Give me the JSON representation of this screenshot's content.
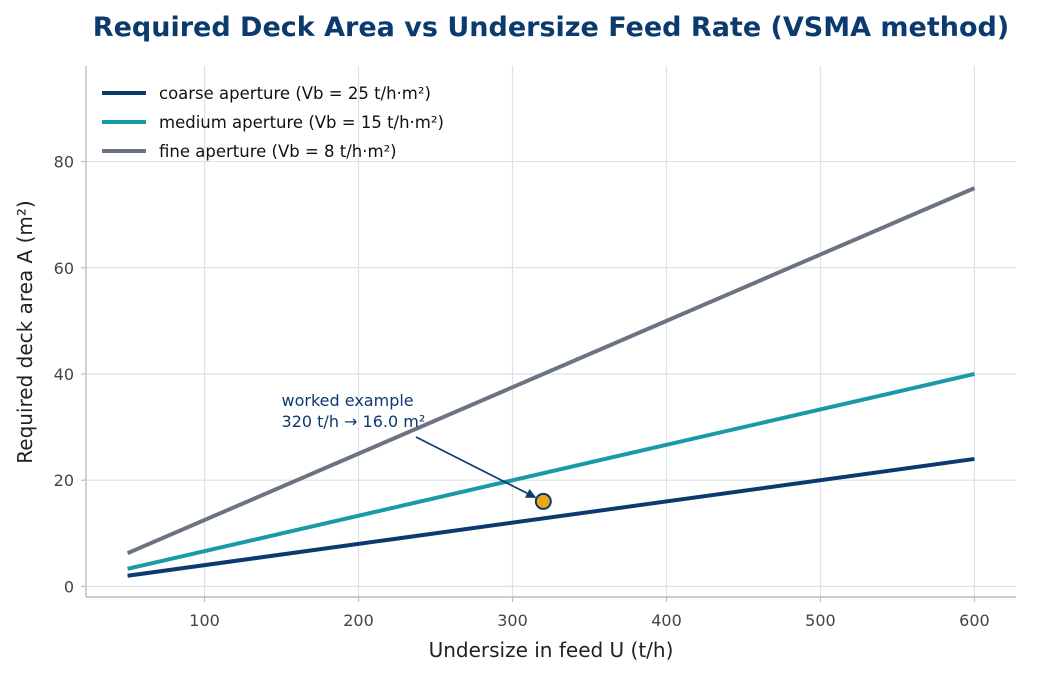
{
  "chart_data": {
    "type": "line",
    "title": "Required Deck Area vs Undersize Feed Rate (VSMA method)",
    "xlabel": "Undersize in feed  U (t/h)",
    "ylabel": "Required deck area  A (m²)",
    "xlim": [
      23,
      627
    ],
    "ylim": [
      -2,
      98
    ],
    "xticks": [
      100,
      200,
      300,
      400,
      500,
      600
    ],
    "yticks": [
      0,
      20,
      40,
      60,
      80
    ],
    "grid": true,
    "legend_position": "top-left",
    "series": [
      {
        "name": "coarse aperture (Vb = 25 t/h·m²)",
        "color": "#0b3a6e",
        "x": [
          50,
          600
        ],
        "y": [
          2.0,
          24.0
        ]
      },
      {
        "name": "medium aperture (Vb = 15 t/h·m²)",
        "color": "#1a9aa5",
        "x": [
          50,
          600
        ],
        "y": [
          3.3,
          40.0
        ]
      },
      {
        "name": "fine aperture (Vb = 8 t/h·m²)",
        "color": "#6b7480",
        "x": [
          50,
          600
        ],
        "y": [
          6.25,
          75.0
        ]
      }
    ],
    "annotation": {
      "lines": [
        "worked example",
        "320 t/h → 16.0 m²"
      ],
      "point": {
        "x": 320,
        "y": 16.0
      },
      "text_at": {
        "x": 150,
        "y": 30
      },
      "color": "#0b3a6e",
      "marker_color": "#e6a817"
    }
  }
}
